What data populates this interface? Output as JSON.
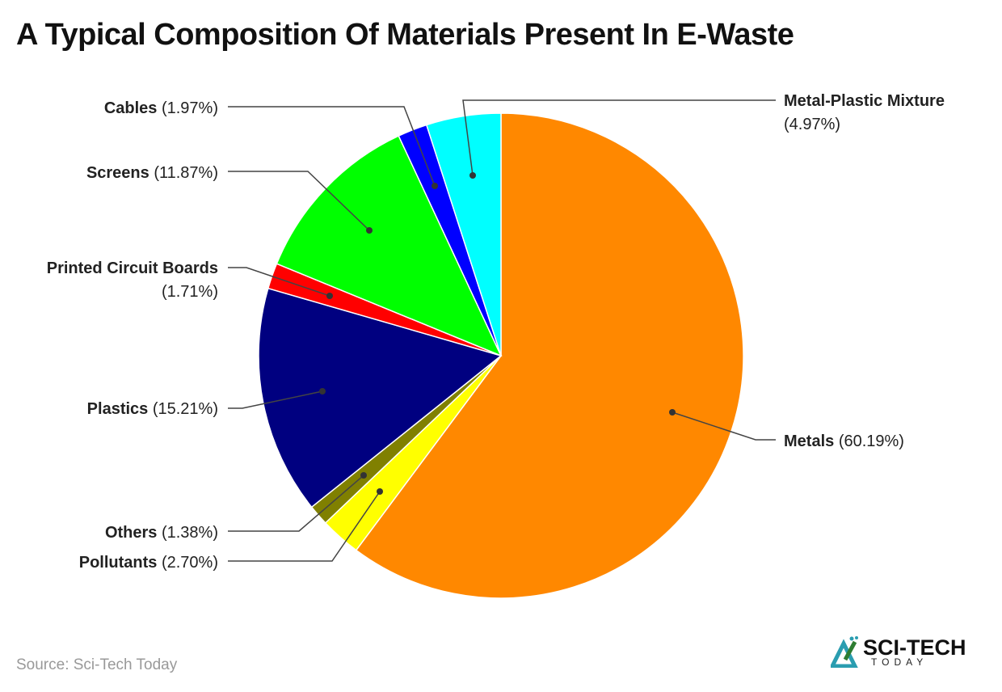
{
  "title": "A Typical Composition Of Materials Present In E-Waste",
  "source": "Source: Sci-Tech Today",
  "logo": {
    "text_main": "SCI-TECH",
    "text_sub": "TODAY"
  },
  "chart_data": {
    "type": "pie",
    "title": "A Typical Composition Of Materials Present In E-Waste",
    "start": "12 o'clock, clockwise",
    "slices": [
      {
        "name": "Metals",
        "value": 60.19,
        "label": "(60.19%)",
        "color": "#FF8800"
      },
      {
        "name": "Pollutants",
        "value": 2.7,
        "label": "(2.70%)",
        "color": "#FFFF00"
      },
      {
        "name": "Others",
        "value": 1.38,
        "label": "(1.38%)",
        "color": "#808000"
      },
      {
        "name": "Plastics",
        "value": 15.21,
        "label": "(15.21%)",
        "color": "#000080"
      },
      {
        "name": "Printed Circuit Boards",
        "value": 1.71,
        "label": "(1.71%)",
        "color": "#FF0000"
      },
      {
        "name": "Screens",
        "value": 11.87,
        "label": "(11.87%)",
        "color": "#00FF00"
      },
      {
        "name": "Cables",
        "value": 1.97,
        "label": "(1.97%)",
        "color": "#0000FF"
      },
      {
        "name": "Metal-Plastic Mixture",
        "value": 4.97,
        "label": "(4.97%)",
        "color": "#00FFFF"
      }
    ]
  }
}
